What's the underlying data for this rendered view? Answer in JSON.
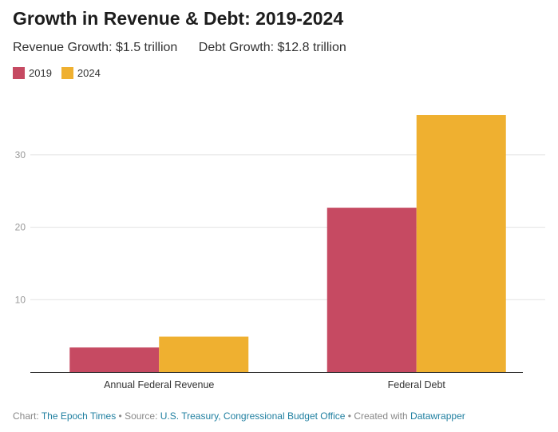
{
  "chart_data": {
    "type": "bar",
    "title": "Growth in Revenue & Debt: 2019-2024",
    "subtitle": [
      "Revenue Growth: $1.5 trillion",
      "Debt Growth: $12.8 trillion"
    ],
    "categories": [
      "Annual Federal Revenue",
      "Federal Debt"
    ],
    "series": [
      {
        "name": "2019",
        "color": "#c64a62",
        "values": [
          3.4,
          22.7
        ]
      },
      {
        "name": "2024",
        "color": "#efb030",
        "values": [
          4.9,
          35.5
        ]
      }
    ],
    "yticks": [
      10,
      20,
      30
    ],
    "ylim": [
      0,
      36
    ],
    "grid": true,
    "legend": "top-left",
    "xlabel": "",
    "ylabel": ""
  },
  "footer": {
    "chart_label": "Chart:",
    "chart_by": "The Epoch Times",
    "source_label": "• Source:",
    "source": "U.S. Treasury, Congressional Budget Office",
    "created_label": "• Created with",
    "created_with": "Datawrapper"
  }
}
